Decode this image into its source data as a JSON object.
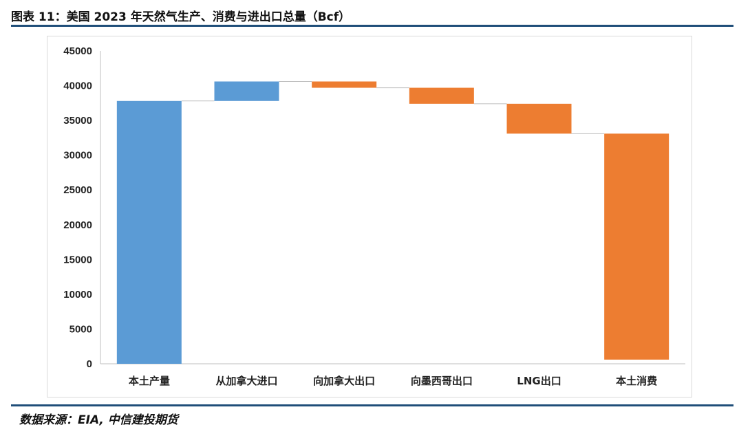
{
  "title": "图表 11：美国 2023 年天然气生产、消费与进出口总量（Bcf）",
  "source": "数据来源：EIA, 中信建投期货",
  "colors": {
    "increase": "#5b9bd5",
    "decrease": "#ed7d31",
    "connector": "#bfbfbf",
    "axis": "#bfbfbf",
    "rule": "#1f4e79"
  },
  "chart_data": {
    "type": "bar",
    "subtype": "waterfall",
    "categories": [
      "本土产量",
      "从加拿大进口",
      "向加拿大出口",
      "向墨西哥出口",
      "LNG出口",
      "本土消费"
    ],
    "steps": [
      {
        "kind": "total",
        "value": 37800,
        "color_role": "increase"
      },
      {
        "kind": "delta",
        "value": 2800,
        "color_role": "increase"
      },
      {
        "kind": "delta",
        "value": -900,
        "color_role": "decrease"
      },
      {
        "kind": "delta",
        "value": -2300,
        "color_role": "decrease"
      },
      {
        "kind": "delta",
        "value": -4300,
        "color_role": "decrease"
      },
      {
        "kind": "delta",
        "value": -32500,
        "color_role": "decrease"
      }
    ],
    "ylim": [
      0,
      45000
    ],
    "yticks": [
      "0",
      "5000",
      "10000",
      "15000",
      "20000",
      "25000",
      "30000",
      "35000",
      "40000",
      "45000"
    ],
    "grid": false,
    "legend": "none"
  }
}
